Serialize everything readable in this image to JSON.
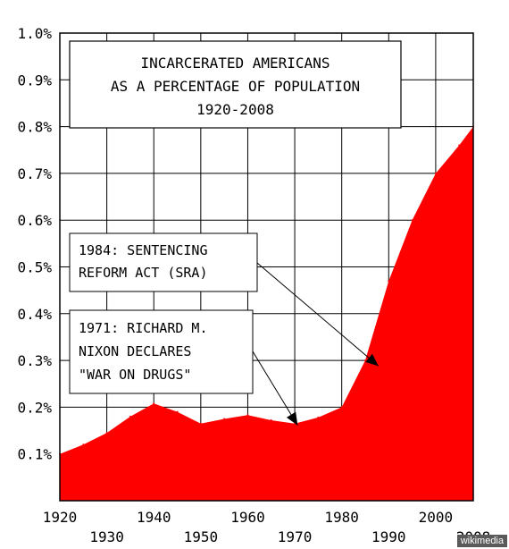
{
  "chart_data": {
    "type": "area",
    "title_lines": [
      "INCARCERATED AMERICANS",
      "AS A PERCENTAGE OF POPULATION",
      "1920-2008"
    ],
    "x": [
      1920,
      1925,
      1930,
      1935,
      1940,
      1945,
      1950,
      1955,
      1960,
      1965,
      1970,
      1975,
      1980,
      1985,
      1990,
      1995,
      2000,
      2005,
      2008
    ],
    "y": [
      0.1,
      0.12,
      0.145,
      0.18,
      0.208,
      0.19,
      0.165,
      0.175,
      0.183,
      0.172,
      0.165,
      0.178,
      0.2,
      0.3,
      0.47,
      0.6,
      0.7,
      0.76,
      0.8
    ],
    "xlim": [
      1920,
      2008
    ],
    "ylim": [
      0,
      1.0
    ],
    "x_ticks_upper": [
      "1920",
      "1940",
      "1960",
      "1980",
      "2000"
    ],
    "x_ticks_lower": [
      "1930",
      "1950",
      "1970",
      "1990",
      "2008"
    ],
    "y_ticks": [
      "0.1%",
      "0.2%",
      "0.3%",
      "0.4%",
      "0.5%",
      "0.6%",
      "0.7%",
      "0.8%",
      "0.9%",
      "1.0%"
    ],
    "grid": true,
    "fill_color": "#ff0000",
    "annotations": [
      {
        "lines": [
          "1984: SENTENCING",
          "REFORM ACT (SRA)"
        ],
        "x": 1984,
        "y": 0.29
      },
      {
        "lines": [
          "1971: RICHARD M.",
          "NIXON DECLARES",
          "\"WAR ON DRUGS\""
        ],
        "x": 1971,
        "y": 0.165
      }
    ]
  },
  "credit": "wikimedia"
}
